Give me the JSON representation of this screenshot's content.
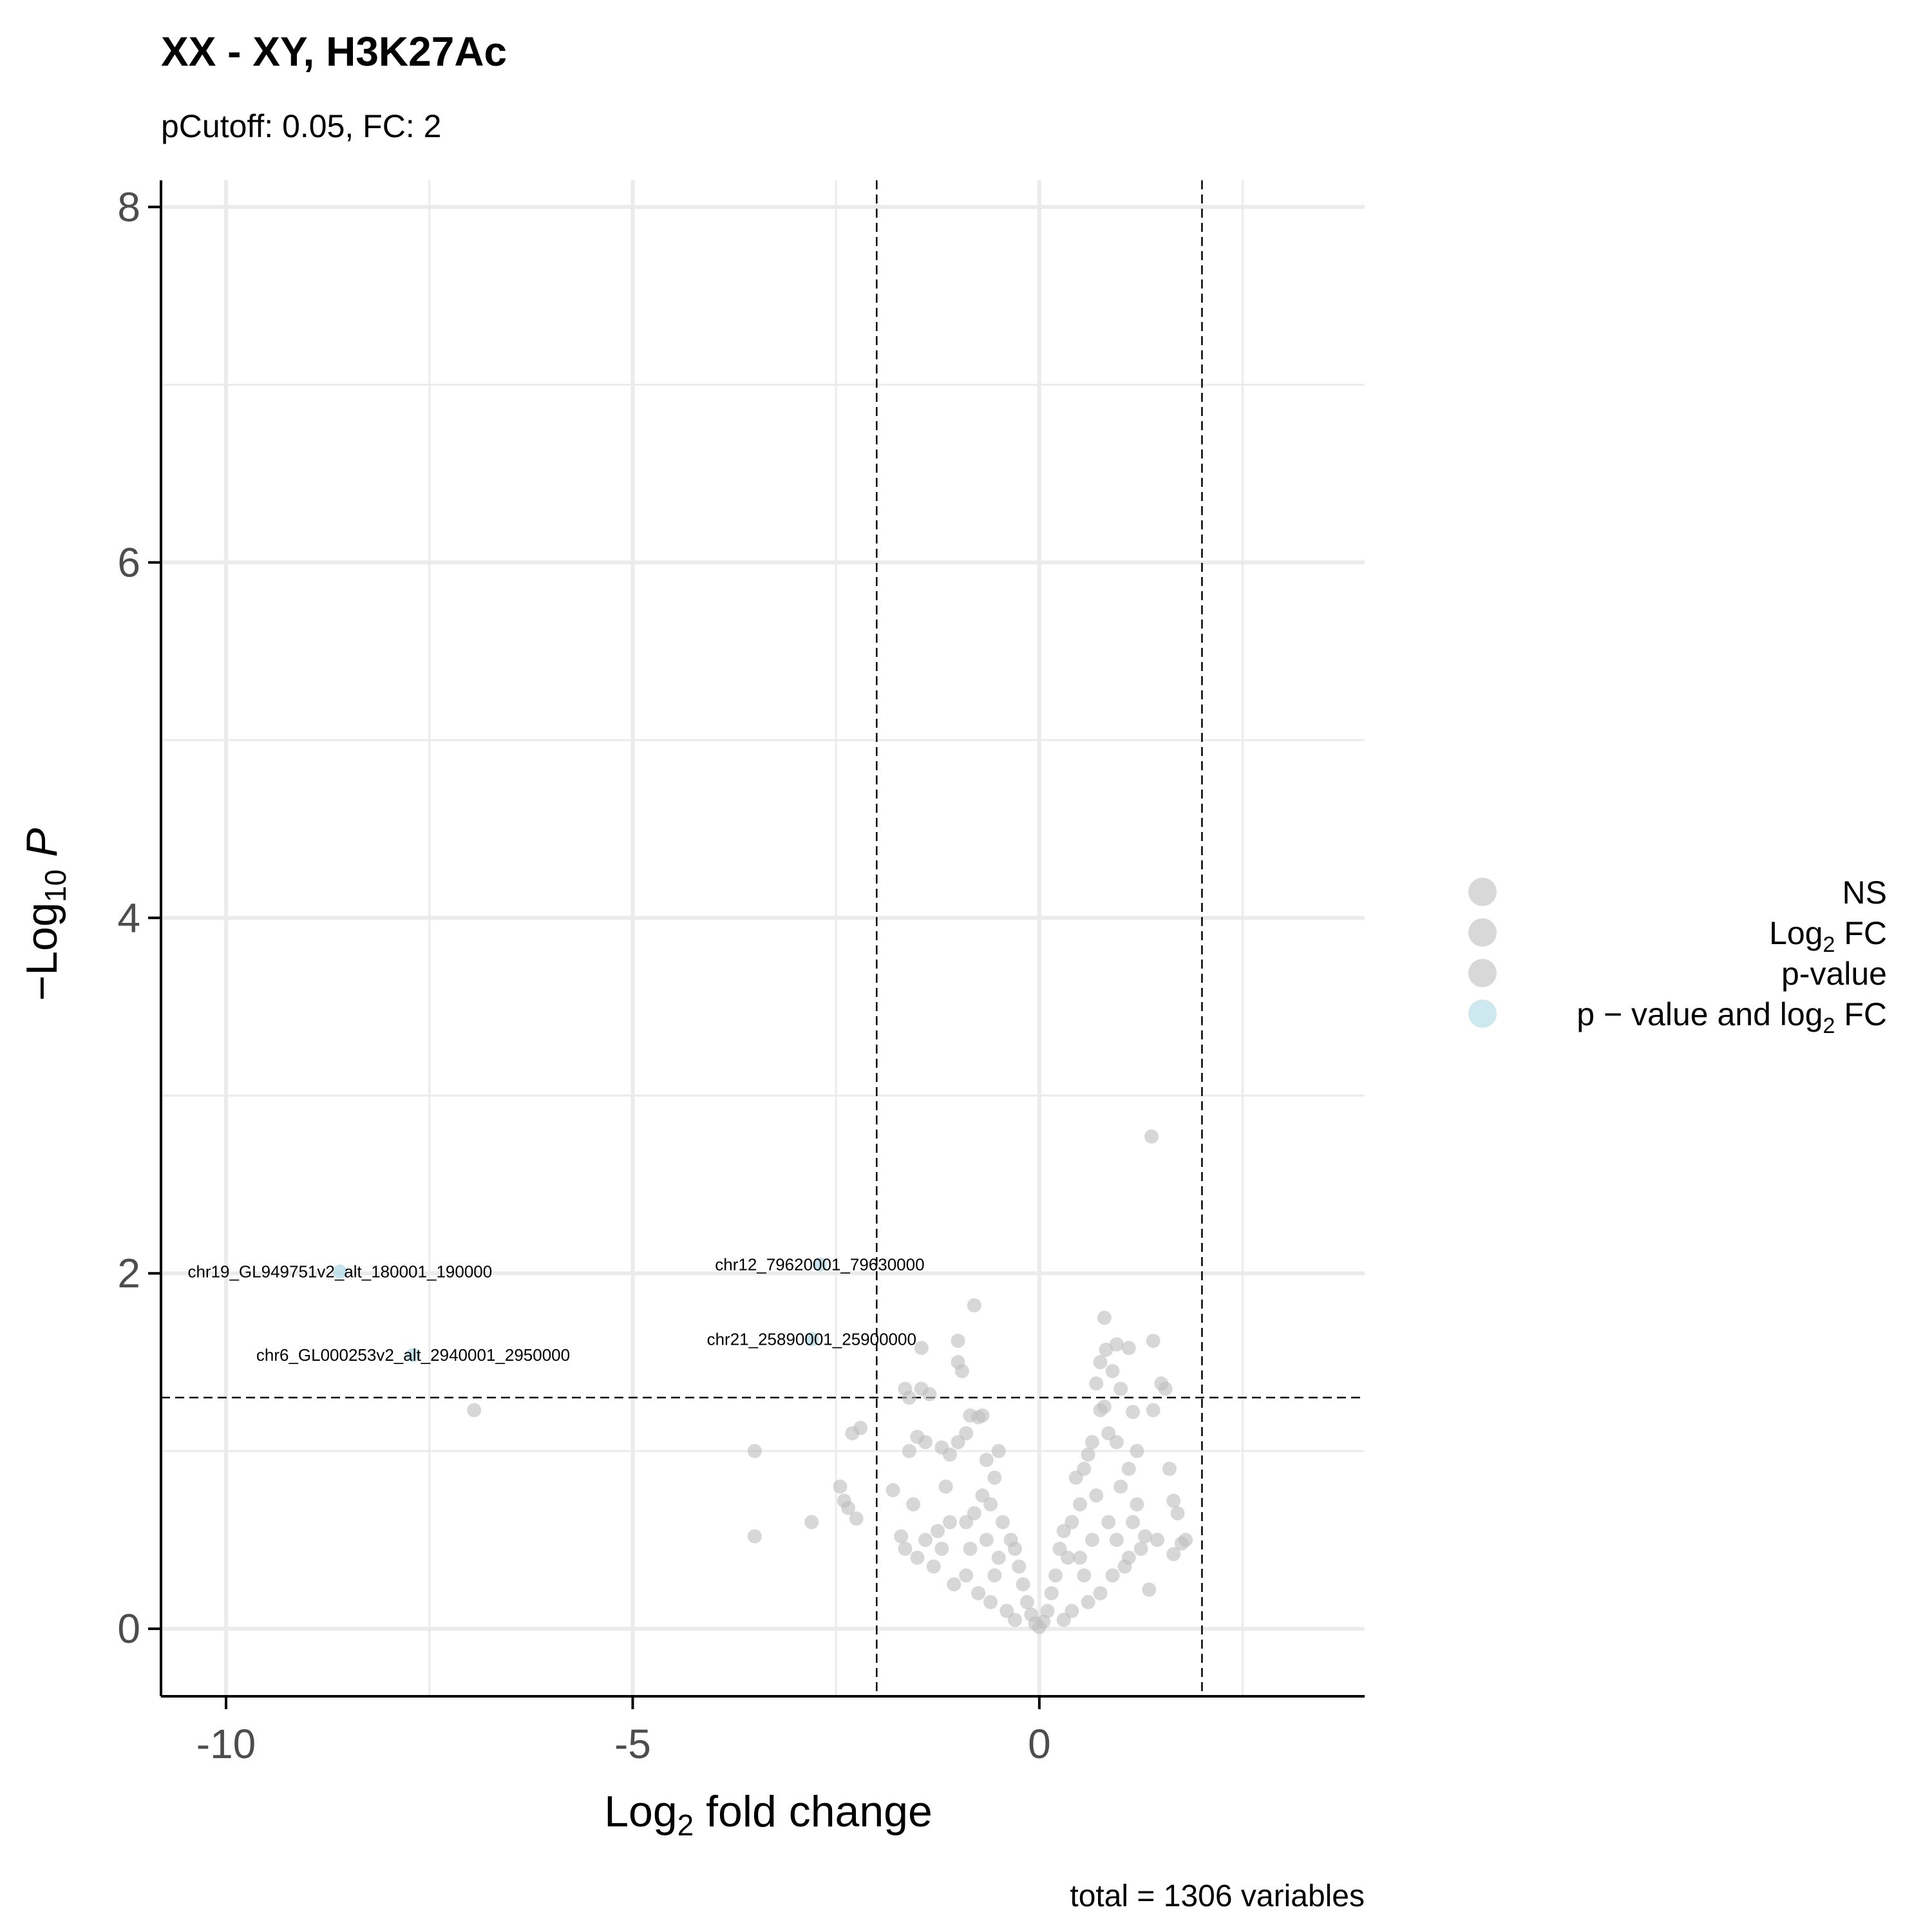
{
  "chart_data": {
    "type": "scatter",
    "title": "XX - XY, H3K27Ac",
    "subtitle": "pCutoff: 0.05, FC: 2",
    "xlabel": "Log2 fold change",
    "ylabel": "-Log10 P",
    "caption": "total = 1306 variables",
    "xlim": [
      -10.8,
      4.0
    ],
    "ylim": [
      -0.38,
      8.15
    ],
    "x_ticks": [
      "-10",
      "-5",
      "0"
    ],
    "y_ticks": [
      "0",
      "2",
      "4",
      "6",
      "8"
    ],
    "thresholds": {
      "fc_lines": [
        -2,
        2
      ],
      "p_line": 1.301
    },
    "grid": true,
    "legend_position": "right",
    "legend": [
      {
        "label": "NS",
        "color": "#bebebe"
      },
      {
        "label": "Log2 FC",
        "color": "#bebebe"
      },
      {
        "label": "p-value",
        "color": "#bebebe"
      },
      {
        "label": "p-value and log2 FC",
        "color": "#add8e6"
      }
    ],
    "labeled_points": [
      {
        "x": -8.6,
        "y": 2.01,
        "label": "chr19_GL949751v2_alt_180001_190000",
        "category": "p-value and log2 FC"
      },
      {
        "x": -7.7,
        "y": 1.54,
        "label": "chr6_GL000253v2_alt_2940001_2950000",
        "category": "p-value and log2 FC"
      },
      {
        "x": -2.7,
        "y": 2.05,
        "label": "chr12_79620001_79630000",
        "category": "p-value and log2 FC"
      },
      {
        "x": -2.8,
        "y": 1.63,
        "label": "chr21_25890001_25900000",
        "category": "p-value and log2 FC"
      }
    ],
    "points": [
      [
        1.38,
        2.77
      ],
      [
        -0.8,
        1.82
      ],
      [
        0.8,
        1.75
      ],
      [
        1.4,
        1.62
      ],
      [
        0.95,
        1.6
      ],
      [
        0.82,
        1.57
      ],
      [
        1.1,
        1.58
      ],
      [
        0.75,
        1.5
      ],
      [
        0.9,
        1.45
      ],
      [
        -1.45,
        1.58
      ],
      [
        -1.0,
        1.62
      ],
      [
        -1.0,
        1.5
      ],
      [
        -0.95,
        1.45
      ],
      [
        -1.65,
        1.35
      ],
      [
        -1.45,
        1.35
      ],
      [
        -1.35,
        1.32
      ],
      [
        -1.6,
        1.3
      ],
      [
        0.7,
        1.38
      ],
      [
        1.0,
        1.35
      ],
      [
        1.5,
        1.38
      ],
      [
        1.55,
        1.35
      ],
      [
        1.4,
        1.23
      ],
      [
        1.15,
        1.22
      ],
      [
        0.75,
        1.23
      ],
      [
        0.8,
        1.25
      ],
      [
        -0.7,
        1.2
      ],
      [
        -0.85,
        1.2
      ],
      [
        -0.75,
        1.19
      ],
      [
        -6.95,
        1.23
      ],
      [
        -3.5,
        1.0
      ],
      [
        -3.5,
        0.52
      ],
      [
        -2.8,
        0.6
      ],
      [
        -2.3,
        1.1
      ],
      [
        -2.2,
        1.13
      ],
      [
        -2.45,
        0.8
      ],
      [
        -2.4,
        0.72
      ],
      [
        -2.35,
        0.68
      ],
      [
        -2.25,
        0.62
      ],
      [
        -1.8,
        0.78
      ],
      [
        -1.6,
        1.0
      ],
      [
        -1.5,
        1.08
      ],
      [
        -1.4,
        1.05
      ],
      [
        -1.2,
        1.02
      ],
      [
        -1.1,
        0.98
      ],
      [
        -1.0,
        1.05
      ],
      [
        -0.9,
        1.1
      ],
      [
        -1.7,
        0.52
      ],
      [
        -1.65,
        0.45
      ],
      [
        -1.5,
        0.4
      ],
      [
        -1.3,
        0.35
      ],
      [
        -1.25,
        0.55
      ],
      [
        -1.1,
        0.6
      ],
      [
        -1.4,
        0.5
      ],
      [
        -1.55,
        0.7
      ],
      [
        1.6,
        0.9
      ],
      [
        1.65,
        0.72
      ],
      [
        1.7,
        0.65
      ],
      [
        1.8,
        0.5
      ],
      [
        1.75,
        0.48
      ],
      [
        1.65,
        0.42
      ],
      [
        1.45,
        0.5
      ],
      [
        1.3,
        0.52
      ],
      [
        1.25,
        0.45
      ],
      [
        1.35,
        0.22
      ],
      [
        1.1,
        0.4
      ],
      [
        1.2,
        0.7
      ],
      [
        1.0,
        0.8
      ],
      [
        1.1,
        0.9
      ],
      [
        1.2,
        1.0
      ],
      [
        0.95,
        1.05
      ],
      [
        0.85,
        1.1
      ],
      [
        0.65,
        1.05
      ],
      [
        0.6,
        0.98
      ],
      [
        -0.5,
        1.0
      ],
      [
        -0.65,
        0.95
      ],
      [
        -0.55,
        0.85
      ],
      [
        0.45,
        0.85
      ],
      [
        0.55,
        0.9
      ],
      [
        0.7,
        0.75
      ],
      [
        0.5,
        0.7
      ],
      [
        -0.6,
        0.7
      ],
      [
        -0.7,
        0.75
      ],
      [
        -0.8,
        0.65
      ],
      [
        -0.9,
        0.6
      ],
      [
        -0.45,
        0.6
      ],
      [
        0.3,
        0.55
      ],
      [
        0.4,
        0.6
      ],
      [
        -0.35,
        0.5
      ],
      [
        -0.3,
        0.45
      ],
      [
        0.25,
        0.45
      ],
      [
        0.35,
        0.4
      ],
      [
        -0.25,
        0.35
      ],
      [
        0.2,
        0.3
      ],
      [
        -0.2,
        0.25
      ],
      [
        0.15,
        0.2
      ],
      [
        -0.15,
        0.15
      ],
      [
        0.1,
        0.1
      ],
      [
        -0.1,
        0.08
      ],
      [
        0.05,
        0.04
      ],
      [
        -0.05,
        0.03
      ],
      [
        0.0,
        0.01
      ],
      [
        0.9,
        0.3
      ],
      [
        -0.9,
        0.3
      ],
      [
        0.75,
        0.2
      ],
      [
        -0.75,
        0.2
      ],
      [
        1.05,
        0.35
      ],
      [
        -1.05,
        0.25
      ],
      [
        -1.2,
        0.45
      ],
      [
        -0.6,
        0.15
      ],
      [
        0.6,
        0.15
      ],
      [
        -0.4,
        0.1
      ],
      [
        0.4,
        0.1
      ],
      [
        -0.3,
        0.05
      ],
      [
        0.3,
        0.05
      ],
      [
        -0.55,
        0.3
      ],
      [
        0.55,
        0.3
      ],
      [
        0.65,
        0.5
      ],
      [
        -0.65,
        0.5
      ],
      [
        0.85,
        0.6
      ],
      [
        -0.85,
        0.45
      ],
      [
        1.15,
        0.6
      ],
      [
        -1.15,
        0.8
      ],
      [
        0.95,
        0.5
      ],
      [
        0.5,
        0.4
      ],
      [
        -0.5,
        0.4
      ]
    ]
  }
}
